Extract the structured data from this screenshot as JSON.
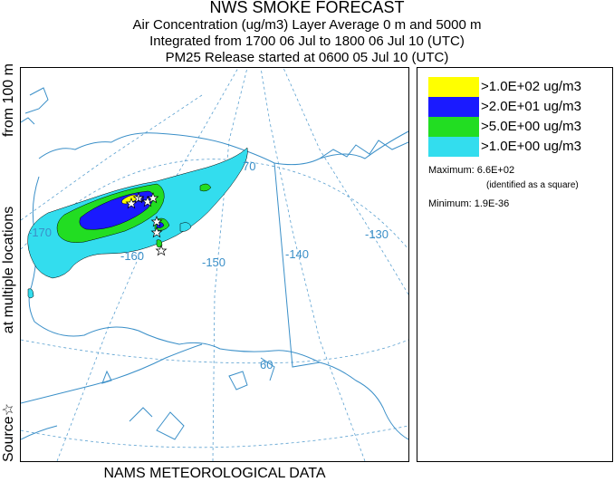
{
  "title": {
    "line1": "NWS SMOKE FORECAST",
    "line2": "Air Concentration (ug/m3) Layer Average    0 m and  5000 m",
    "line3": "Integrated from 1700 06 Jul to 1800 06 Jul 10 (UTC)",
    "line4": "PM25 Release started at 0600 05 Jul 10 (UTC)"
  },
  "side_label": {
    "part1": "Source☆",
    "part2": "at multiple locations",
    "part3": "from   100 m"
  },
  "map": {
    "longitude_labels": [
      "-170",
      "-160",
      "-150",
      "-140",
      "-130"
    ],
    "latitude_labels": [
      "70",
      "60"
    ],
    "colors": {
      "grid": "#5aa0d0",
      "coast": "#3a8fc8",
      "contour_yellow": "#ffff00",
      "contour_blue": "#1a1aff",
      "contour_green": "#22dd22",
      "contour_cyan": "#33ddee"
    },
    "source_icon": "star-icon"
  },
  "legend": {
    "items": [
      {
        "color": "#ffff00",
        "label": ">1.0E+02 ug/m3"
      },
      {
        "color": "#1a1aff",
        "label": ">2.0E+01 ug/m3"
      },
      {
        "color": "#22dd22",
        "label": ">5.0E+00 ug/m3"
      },
      {
        "color": "#33ddee",
        "label": ">1.0E+00 ug/m3"
      }
    ],
    "maximum": "Maximum: 6.6E+02",
    "maximum_note": "(identified as a square)",
    "minimum": "Minimum: 1.9E-36"
  },
  "footer": "NAMS METEOROLOGICAL DATA"
}
